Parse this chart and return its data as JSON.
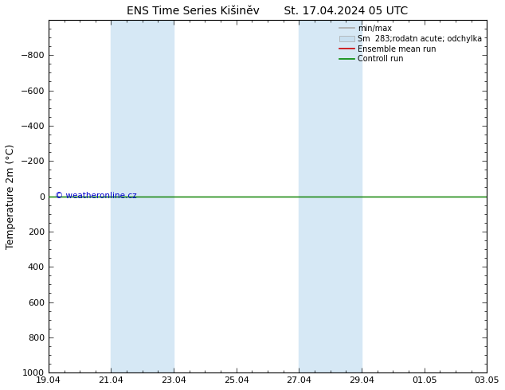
{
  "title": "ENS Time Series Kišiněv       St. 17.04.2024 05 UTC",
  "ylabel": "Temperature 2m (°C)",
  "ylim_bottom": -1000,
  "ylim_top": 1000,
  "yticks": [
    -800,
    -600,
    -400,
    -200,
    0,
    200,
    400,
    600,
    800,
    1000
  ],
  "xtick_labels": [
    "19.04",
    "21.04",
    "23.04",
    "25.04",
    "27.04",
    "29.04",
    "01.05",
    "03.05"
  ],
  "xtick_positions": [
    0,
    2,
    4,
    6,
    8,
    10,
    12,
    14
  ],
  "shaded_bands": [
    {
      "x_start": 2,
      "x_end": 4
    },
    {
      "x_start": 8,
      "x_end": 10
    }
  ],
  "shaded_color": "#d6e8f5",
  "line_y": 0,
  "legend_labels": [
    "min/max",
    "Sm  283;rodatn acute; odchylka",
    "Ensemble mean run",
    "Controll run"
  ],
  "legend_colors_line": [
    "#aaaaaa",
    "#c8dff0",
    "#cc0000",
    "#008800"
  ],
  "watermark": "© weatheronline.cz",
  "watermark_color": "#0000cc",
  "background_color": "#ffffff",
  "title_fontsize": 10,
  "axis_label_fontsize": 9,
  "tick_fontsize": 8,
  "legend_fontsize": 7
}
